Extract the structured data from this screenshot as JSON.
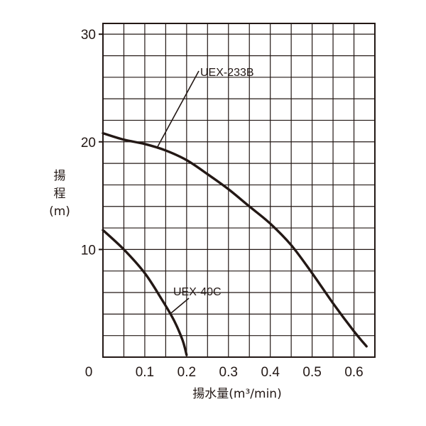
{
  "chart_data": {
    "type": "line",
    "title": "",
    "xlabel": "揚水量(m³/min)",
    "ylabel_lines": [
      "揚",
      "程",
      "(m)"
    ],
    "xlim": [
      0,
      0.65
    ],
    "ylim": [
      0,
      31
    ],
    "x_ticks": [
      {
        "value": 0,
        "label": "0"
      },
      {
        "value": 0.1,
        "label": "0.1"
      },
      {
        "value": 0.2,
        "label": "0.2"
      },
      {
        "value": 0.3,
        "label": "0.3"
      },
      {
        "value": 0.4,
        "label": "0.4"
      },
      {
        "value": 0.5,
        "label": "0.5"
      },
      {
        "value": 0.6,
        "label": "0.6"
      }
    ],
    "y_ticks": [
      {
        "value": 10,
        "label": "10"
      },
      {
        "value": 20,
        "label": "20"
      },
      {
        "value": 30,
        "label": "30"
      }
    ],
    "grid": true,
    "grid_x_step": 0.05,
    "grid_y_step": 2,
    "series": [
      {
        "name": "UEX-233B",
        "points": [
          [
            0,
            20.8
          ],
          [
            0.05,
            20.2
          ],
          [
            0.1,
            19.8
          ],
          [
            0.15,
            19.2
          ],
          [
            0.2,
            18.3
          ],
          [
            0.25,
            17.0
          ],
          [
            0.3,
            15.6
          ],
          [
            0.35,
            14.0
          ],
          [
            0.4,
            12.4
          ],
          [
            0.45,
            10.4
          ],
          [
            0.5,
            7.8
          ],
          [
            0.55,
            5.0
          ],
          [
            0.6,
            2.4
          ],
          [
            0.63,
            1.0
          ]
        ]
      },
      {
        "name": "UEX-40C",
        "points": [
          [
            0,
            11.8
          ],
          [
            0.05,
            10.0
          ],
          [
            0.1,
            7.8
          ],
          [
            0.14,
            5.4
          ],
          [
            0.17,
            3.4
          ],
          [
            0.19,
            1.6
          ],
          [
            0.2,
            0.2
          ]
        ]
      }
    ],
    "annotations": [
      {
        "text": "UEX-233B",
        "series": "UEX-233B"
      },
      {
        "text": "UEX-40C",
        "series": "UEX-40C"
      }
    ]
  }
}
